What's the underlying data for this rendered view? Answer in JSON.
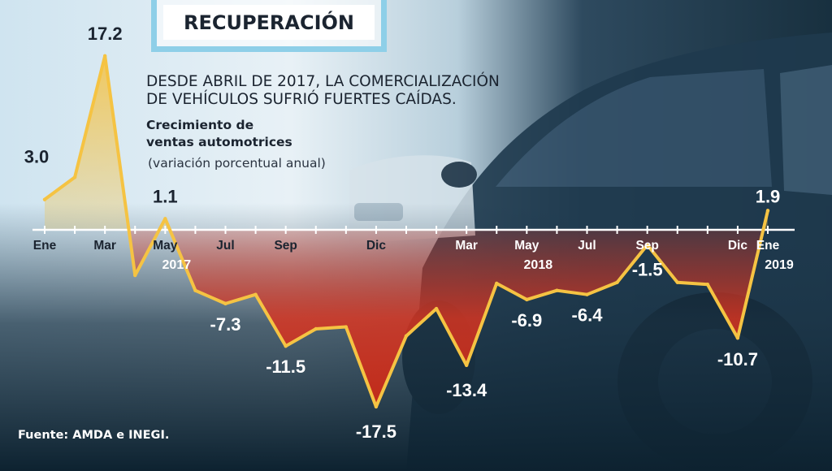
{
  "title": "RECUPERACIÓN",
  "subtitle_lines": [
    "DESDE ABRIL DE 2017, LA COMERCIALIZACIÓN",
    "DE VEHÍCULOS SUFRIÓ FUERTES CAÍDAS."
  ],
  "ylabel": "Crecimiento de\nventas automotrices",
  "unit": "(variación porcentual anual)",
  "source": "Fuente: AMDA e INEGI.",
  "colors": {
    "line": "#f5c343",
    "positive_fill": "#f4c245",
    "negative_fill": "#e1341e",
    "axis": "#ffffff",
    "title_border": "#8ecfe8",
    "bg_light": "#dcebf4",
    "bg_dark": "#0f2738"
  },
  "chart_data": {
    "type": "area",
    "x": [
      "2017-01",
      "2017-02",
      "2017-03",
      "2017-04",
      "2017-05",
      "2017-06",
      "2017-07",
      "2017-08",
      "2017-09",
      "2017-10",
      "2017-11",
      "2017-12",
      "2018-01",
      "2018-02",
      "2018-03",
      "2018-04",
      "2018-05",
      "2018-06",
      "2018-07",
      "2018-08",
      "2018-09",
      "2018-10",
      "2018-11",
      "2018-12",
      "2019-01"
    ],
    "values": [
      3.0,
      5.2,
      17.2,
      -4.5,
      1.1,
      -6.0,
      -7.3,
      -6.4,
      -11.5,
      -9.8,
      -9.6,
      -17.5,
      -10.5,
      -7.8,
      -13.4,
      -5.3,
      -6.9,
      -6.0,
      -6.4,
      -5.2,
      -1.5,
      -5.2,
      -5.4,
      -10.7,
      1.9
    ],
    "labeled_points": [
      {
        "month": "2017-01",
        "text": "3.0"
      },
      {
        "month": "2017-03",
        "text": "17.2"
      },
      {
        "month": "2017-05",
        "text": "1.1"
      },
      {
        "month": "2017-07",
        "text": "-7.3"
      },
      {
        "month": "2017-09",
        "text": "-11.5"
      },
      {
        "month": "2017-12",
        "text": "-17.5"
      },
      {
        "month": "2018-03",
        "text": "-13.4"
      },
      {
        "month": "2018-05",
        "text": "-6.9"
      },
      {
        "month": "2018-07",
        "text": "-6.4"
      },
      {
        "month": "2018-09",
        "text": "-1.5"
      },
      {
        "month": "2018-12",
        "text": "-10.7"
      },
      {
        "month": "2019-01",
        "text": "1.9"
      }
    ],
    "tick_labels": [
      {
        "month": "2017-01",
        "text": "Ene"
      },
      {
        "month": "2017-03",
        "text": "Mar"
      },
      {
        "month": "2017-05",
        "text": "May"
      },
      {
        "month": "2017-07",
        "text": "Jul"
      },
      {
        "month": "2017-09",
        "text": "Sep"
      },
      {
        "month": "2017-12",
        "text": "Dic"
      },
      {
        "month": "2018-03",
        "text": "Mar"
      },
      {
        "month": "2018-05",
        "text": "May"
      },
      {
        "month": "2018-07",
        "text": "Jul"
      },
      {
        "month": "2018-09",
        "text": "Sep"
      },
      {
        "month": "2018-12",
        "text": "Dic"
      },
      {
        "month": "2019-01",
        "text": "Ene"
      }
    ],
    "year_labels": [
      {
        "month": "2017-05",
        "text": "2017"
      },
      {
        "month": "2018-05",
        "text": "2018"
      },
      {
        "month": "2019-01",
        "text": "2019"
      }
    ]
  }
}
